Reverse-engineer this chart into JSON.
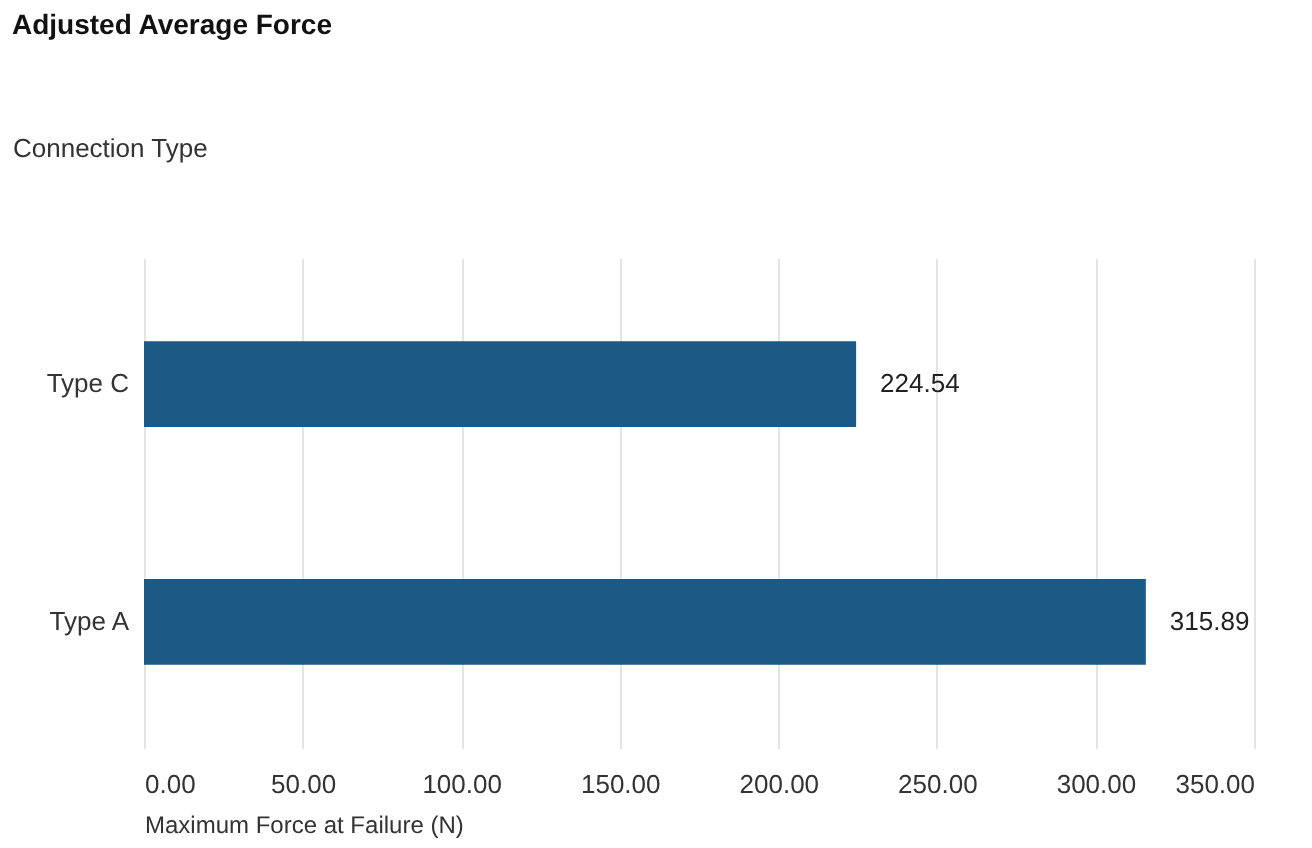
{
  "chart_data": {
    "type": "bar",
    "orientation": "horizontal",
    "title": "Adjusted Average Force",
    "ylabel": "Connection Type",
    "xlabel": "Maximum Force at Failure (N)",
    "categories": [
      "Type C",
      "Type A"
    ],
    "values": [
      224.54,
      315.89
    ],
    "color": "#1a5a85",
    "xlim": [
      0,
      350
    ],
    "xticks": [
      {
        "value": 0,
        "label": "0.00"
      },
      {
        "value": 50,
        "label": "50.00"
      },
      {
        "value": 100,
        "label": "100.00"
      },
      {
        "value": 150,
        "label": "150.00"
      },
      {
        "value": 200,
        "label": "200.00"
      },
      {
        "value": 250,
        "label": "250.00"
      },
      {
        "value": 300,
        "label": "300.00"
      },
      {
        "value": 350,
        "label": "350.00"
      }
    ],
    "grid": "x",
    "data_labels": true
  }
}
